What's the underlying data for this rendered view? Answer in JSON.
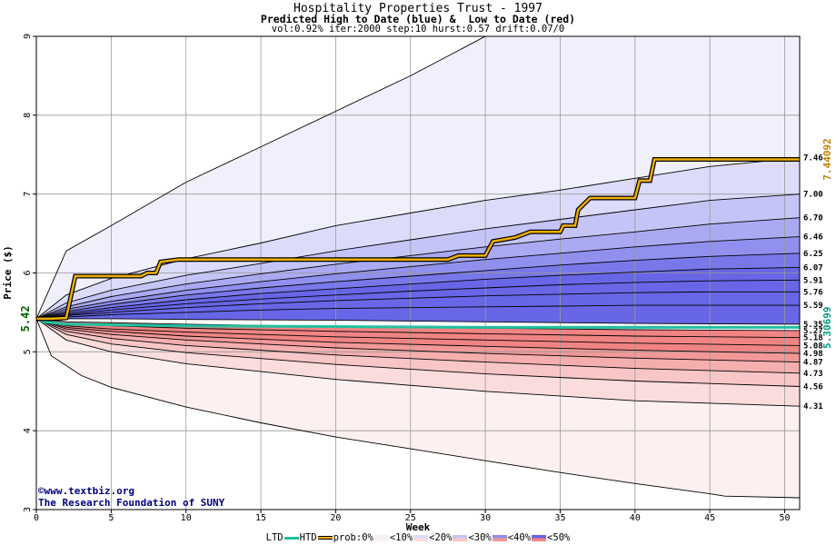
{
  "header": {
    "title": "Hospitality Properties Trust - 1997",
    "subtitle": "Predicted High to Date (blue) &  Low to Date (red)",
    "params": "vol:0.92% iter:2000 step:10 hurst:0.57 drift:0.07/0"
  },
  "credits": {
    "line1": "©www.textbiz.org",
    "line2": "The Research Foundation of SUNY"
  },
  "legend": {
    "ltd": "LTD",
    "htd": "HTD",
    "prob": "prob:0%",
    "p10": "<10%",
    "p20": "<20%",
    "p30": "<30%",
    "p40": "<40%",
    "p50": "<50%"
  },
  "colors": {
    "htd_path": "#f0b000",
    "ltd_path": "#20c0a0",
    "blue_bands": [
      "#f0f0fc",
      "#dcdcfa",
      "#c4c4f6",
      "#aaaaf2",
      "#9090ee",
      "#7878ea",
      "#6666e6"
    ],
    "red_bands": [
      "#fdf0f0",
      "#fbdcdc",
      "#f8c6c6",
      "#f5aeae",
      "#f29898",
      "#f08484"
    ],
    "start_label": "#006000",
    "high_label": "#c08000",
    "low_label": "#00a080"
  },
  "chart_data": {
    "type": "area",
    "xlabel": "Week",
    "ylabel": "Price ($)",
    "xlim": [
      0,
      51
    ],
    "ylim": [
      3,
      9
    ],
    "x_ticks": [
      0,
      5,
      10,
      15,
      20,
      25,
      30,
      35,
      40,
      45,
      50
    ],
    "y_ticks": [
      3,
      4,
      5,
      6,
      7,
      8,
      9
    ],
    "grid": true,
    "start_price": "5.42",
    "high_to_date_final": "7.44092",
    "low_to_date_final": "5.30699",
    "high_to_date_path": [
      [
        0,
        5.42
      ],
      [
        1,
        5.42
      ],
      [
        2,
        5.43
      ],
      [
        2.6,
        5.96
      ],
      [
        7,
        5.96
      ],
      [
        7.4,
        6.0
      ],
      [
        8,
        6.0
      ],
      [
        8.3,
        6.14
      ],
      [
        9.5,
        6.17
      ],
      [
        27.5,
        6.17
      ],
      [
        28.2,
        6.22
      ],
      [
        30,
        6.22
      ],
      [
        30.5,
        6.4
      ],
      [
        32,
        6.45
      ],
      [
        33,
        6.52
      ],
      [
        35,
        6.52
      ],
      [
        35.2,
        6.6
      ],
      [
        36,
        6.6
      ],
      [
        36.2,
        6.8
      ],
      [
        37,
        6.95
      ],
      [
        40,
        6.95
      ],
      [
        40.3,
        7.17
      ],
      [
        41,
        7.17
      ],
      [
        41.3,
        7.44
      ],
      [
        51,
        7.44
      ]
    ],
    "low_to_date_path": [
      [
        0,
        5.42
      ],
      [
        0.5,
        5.38
      ],
      [
        2,
        5.35
      ],
      [
        10,
        5.33
      ],
      [
        20,
        5.32
      ],
      [
        30,
        5.31
      ],
      [
        40,
        5.31
      ],
      [
        51,
        5.31
      ]
    ],
    "high_quantiles": [
      {
        "end_label": "",
        "points": [
          [
            0,
            5.42
          ],
          [
            2,
            6.28
          ],
          [
            5,
            6.6
          ],
          [
            10,
            7.15
          ],
          [
            15,
            7.6
          ],
          [
            20,
            8.05
          ],
          [
            25,
            8.5
          ],
          [
            28,
            8.8
          ],
          [
            30,
            9.0
          ],
          [
            51,
            9.0
          ]
        ]
      },
      {
        "end_label": "7.46",
        "points": [
          [
            0,
            5.42
          ],
          [
            2,
            5.72
          ],
          [
            5,
            5.93
          ],
          [
            10,
            6.18
          ],
          [
            15,
            6.38
          ],
          [
            20,
            6.6
          ],
          [
            25,
            6.76
          ],
          [
            30,
            6.92
          ],
          [
            35,
            7.05
          ],
          [
            40,
            7.2
          ],
          [
            45,
            7.35
          ],
          [
            51,
            7.46
          ]
        ]
      },
      {
        "end_label": "7.00",
        "points": [
          [
            0,
            5.42
          ],
          [
            2,
            5.62
          ],
          [
            5,
            5.78
          ],
          [
            10,
            5.97
          ],
          [
            15,
            6.12
          ],
          [
            20,
            6.28
          ],
          [
            25,
            6.42
          ],
          [
            30,
            6.56
          ],
          [
            35,
            6.68
          ],
          [
            40,
            6.8
          ],
          [
            45,
            6.92
          ],
          [
            51,
            7.0
          ]
        ]
      },
      {
        "end_label": "6.70",
        "points": [
          [
            0,
            5.42
          ],
          [
            2,
            5.57
          ],
          [
            5,
            5.7
          ],
          [
            10,
            5.86
          ],
          [
            15,
            5.99
          ],
          [
            20,
            6.11
          ],
          [
            25,
            6.22
          ],
          [
            30,
            6.33
          ],
          [
            35,
            6.43
          ],
          [
            40,
            6.52
          ],
          [
            45,
            6.62
          ],
          [
            51,
            6.7
          ]
        ]
      },
      {
        "end_label": "6.46",
        "points": [
          [
            0,
            5.42
          ],
          [
            2,
            5.54
          ],
          [
            5,
            5.64
          ],
          [
            10,
            5.78
          ],
          [
            15,
            5.89
          ],
          [
            20,
            5.99
          ],
          [
            25,
            6.08
          ],
          [
            30,
            6.17
          ],
          [
            35,
            6.25
          ],
          [
            40,
            6.33
          ],
          [
            45,
            6.4
          ],
          [
            51,
            6.46
          ]
        ]
      },
      {
        "end_label": "6.25",
        "points": [
          [
            0,
            5.42
          ],
          [
            2,
            5.51
          ],
          [
            5,
            5.6
          ],
          [
            10,
            5.72
          ],
          [
            15,
            5.81
          ],
          [
            20,
            5.89
          ],
          [
            25,
            5.96
          ],
          [
            30,
            6.03
          ],
          [
            35,
            6.1
          ],
          [
            40,
            6.16
          ],
          [
            45,
            6.21
          ],
          [
            51,
            6.25
          ]
        ]
      },
      {
        "end_label": "6.07",
        "points": [
          [
            0,
            5.42
          ],
          [
            2,
            5.49
          ],
          [
            5,
            5.56
          ],
          [
            10,
            5.66
          ],
          [
            15,
            5.74
          ],
          [
            20,
            5.8
          ],
          [
            25,
            5.86
          ],
          [
            30,
            5.92
          ],
          [
            35,
            5.97
          ],
          [
            40,
            6.01
          ],
          [
            45,
            6.05
          ],
          [
            51,
            6.07
          ]
        ]
      },
      {
        "end_label": "5.91",
        "points": [
          [
            0,
            5.42
          ],
          [
            2,
            5.47
          ],
          [
            5,
            5.53
          ],
          [
            10,
            5.61
          ],
          [
            15,
            5.67
          ],
          [
            20,
            5.72
          ],
          [
            25,
            5.77
          ],
          [
            30,
            5.81
          ],
          [
            35,
            5.85
          ],
          [
            40,
            5.88
          ],
          [
            45,
            5.9
          ],
          [
            51,
            5.91
          ]
        ]
      },
      {
        "end_label": "5.76",
        "points": [
          [
            0,
            5.42
          ],
          [
            2,
            5.46
          ],
          [
            5,
            5.5
          ],
          [
            10,
            5.56
          ],
          [
            15,
            5.61
          ],
          [
            20,
            5.65
          ],
          [
            25,
            5.68
          ],
          [
            30,
            5.71
          ],
          [
            35,
            5.73
          ],
          [
            40,
            5.75
          ],
          [
            45,
            5.76
          ],
          [
            51,
            5.76
          ]
        ]
      },
      {
        "end_label": "5.59",
        "points": [
          [
            0,
            5.42
          ],
          [
            2,
            5.44
          ],
          [
            5,
            5.47
          ],
          [
            10,
            5.5
          ],
          [
            15,
            5.53
          ],
          [
            20,
            5.55
          ],
          [
            25,
            5.56
          ],
          [
            30,
            5.57
          ],
          [
            35,
            5.58
          ],
          [
            40,
            5.59
          ],
          [
            45,
            5.59
          ],
          [
            51,
            5.59
          ]
        ]
      },
      {
        "end_label": "5.35",
        "points": [
          [
            0,
            5.42
          ],
          [
            5,
            5.42
          ],
          [
            10,
            5.41
          ],
          [
            20,
            5.4
          ],
          [
            30,
            5.38
          ],
          [
            40,
            5.36
          ],
          [
            51,
            5.35
          ]
        ]
      }
    ],
    "low_quantiles": [
      {
        "end_label": "5.27",
        "points": [
          [
            0,
            5.42
          ],
          [
            2,
            5.38
          ],
          [
            5,
            5.37
          ],
          [
            10,
            5.35
          ],
          [
            20,
            5.32
          ],
          [
            30,
            5.3
          ],
          [
            40,
            5.28
          ],
          [
            51,
            5.27
          ]
        ]
      },
      {
        "end_label": "5.18",
        "points": [
          [
            0,
            5.42
          ],
          [
            2,
            5.35
          ],
          [
            5,
            5.33
          ],
          [
            10,
            5.3
          ],
          [
            20,
            5.26
          ],
          [
            30,
            5.23
          ],
          [
            40,
            5.2
          ],
          [
            51,
            5.18
          ]
        ]
      },
      {
        "end_label": "5.08",
        "points": [
          [
            0,
            5.42
          ],
          [
            2,
            5.33
          ],
          [
            5,
            5.29
          ],
          [
            10,
            5.25
          ],
          [
            20,
            5.19
          ],
          [
            30,
            5.15
          ],
          [
            40,
            5.11
          ],
          [
            51,
            5.08
          ]
        ]
      },
      {
        "end_label": "4.98",
        "points": [
          [
            0,
            5.42
          ],
          [
            2,
            5.31
          ],
          [
            5,
            5.26
          ],
          [
            10,
            5.2
          ],
          [
            20,
            5.12
          ],
          [
            30,
            5.07
          ],
          [
            40,
            5.02
          ],
          [
            51,
            4.98
          ]
        ]
      },
      {
        "end_label": "4.87",
        "points": [
          [
            0,
            5.42
          ],
          [
            2,
            5.29
          ],
          [
            5,
            5.22
          ],
          [
            10,
            5.15
          ],
          [
            20,
            5.05
          ],
          [
            30,
            4.98
          ],
          [
            40,
            4.92
          ],
          [
            51,
            4.87
          ]
        ]
      },
      {
        "end_label": "4.73",
        "points": [
          [
            0,
            5.42
          ],
          [
            2,
            5.26
          ],
          [
            5,
            5.17
          ],
          [
            10,
            5.08
          ],
          [
            20,
            4.96
          ],
          [
            30,
            4.87
          ],
          [
            40,
            4.79
          ],
          [
            51,
            4.73
          ]
        ]
      },
      {
        "end_label": "4.56",
        "points": [
          [
            0,
            5.42
          ],
          [
            2,
            5.22
          ],
          [
            5,
            5.1
          ],
          [
            10,
            4.99
          ],
          [
            20,
            4.84
          ],
          [
            30,
            4.72
          ],
          [
            40,
            4.63
          ],
          [
            51,
            4.56
          ]
        ]
      },
      {
        "end_label": "4.31",
        "points": [
          [
            0,
            5.42
          ],
          [
            2,
            5.15
          ],
          [
            5,
            5.0
          ],
          [
            10,
            4.85
          ],
          [
            20,
            4.65
          ],
          [
            30,
            4.5
          ],
          [
            40,
            4.38
          ],
          [
            51,
            4.31
          ]
        ]
      },
      {
        "end_label": "",
        "points": [
          [
            0,
            5.42
          ],
          [
            1,
            4.95
          ],
          [
            3,
            4.7
          ],
          [
            5,
            4.55
          ],
          [
            10,
            4.3
          ],
          [
            15,
            4.1
          ],
          [
            20,
            3.92
          ],
          [
            25,
            3.77
          ],
          [
            30,
            3.62
          ],
          [
            35,
            3.47
          ],
          [
            40,
            3.33
          ],
          [
            45,
            3.2
          ],
          [
            46,
            3.17
          ],
          [
            51,
            3.15
          ]
        ]
      }
    ]
  }
}
